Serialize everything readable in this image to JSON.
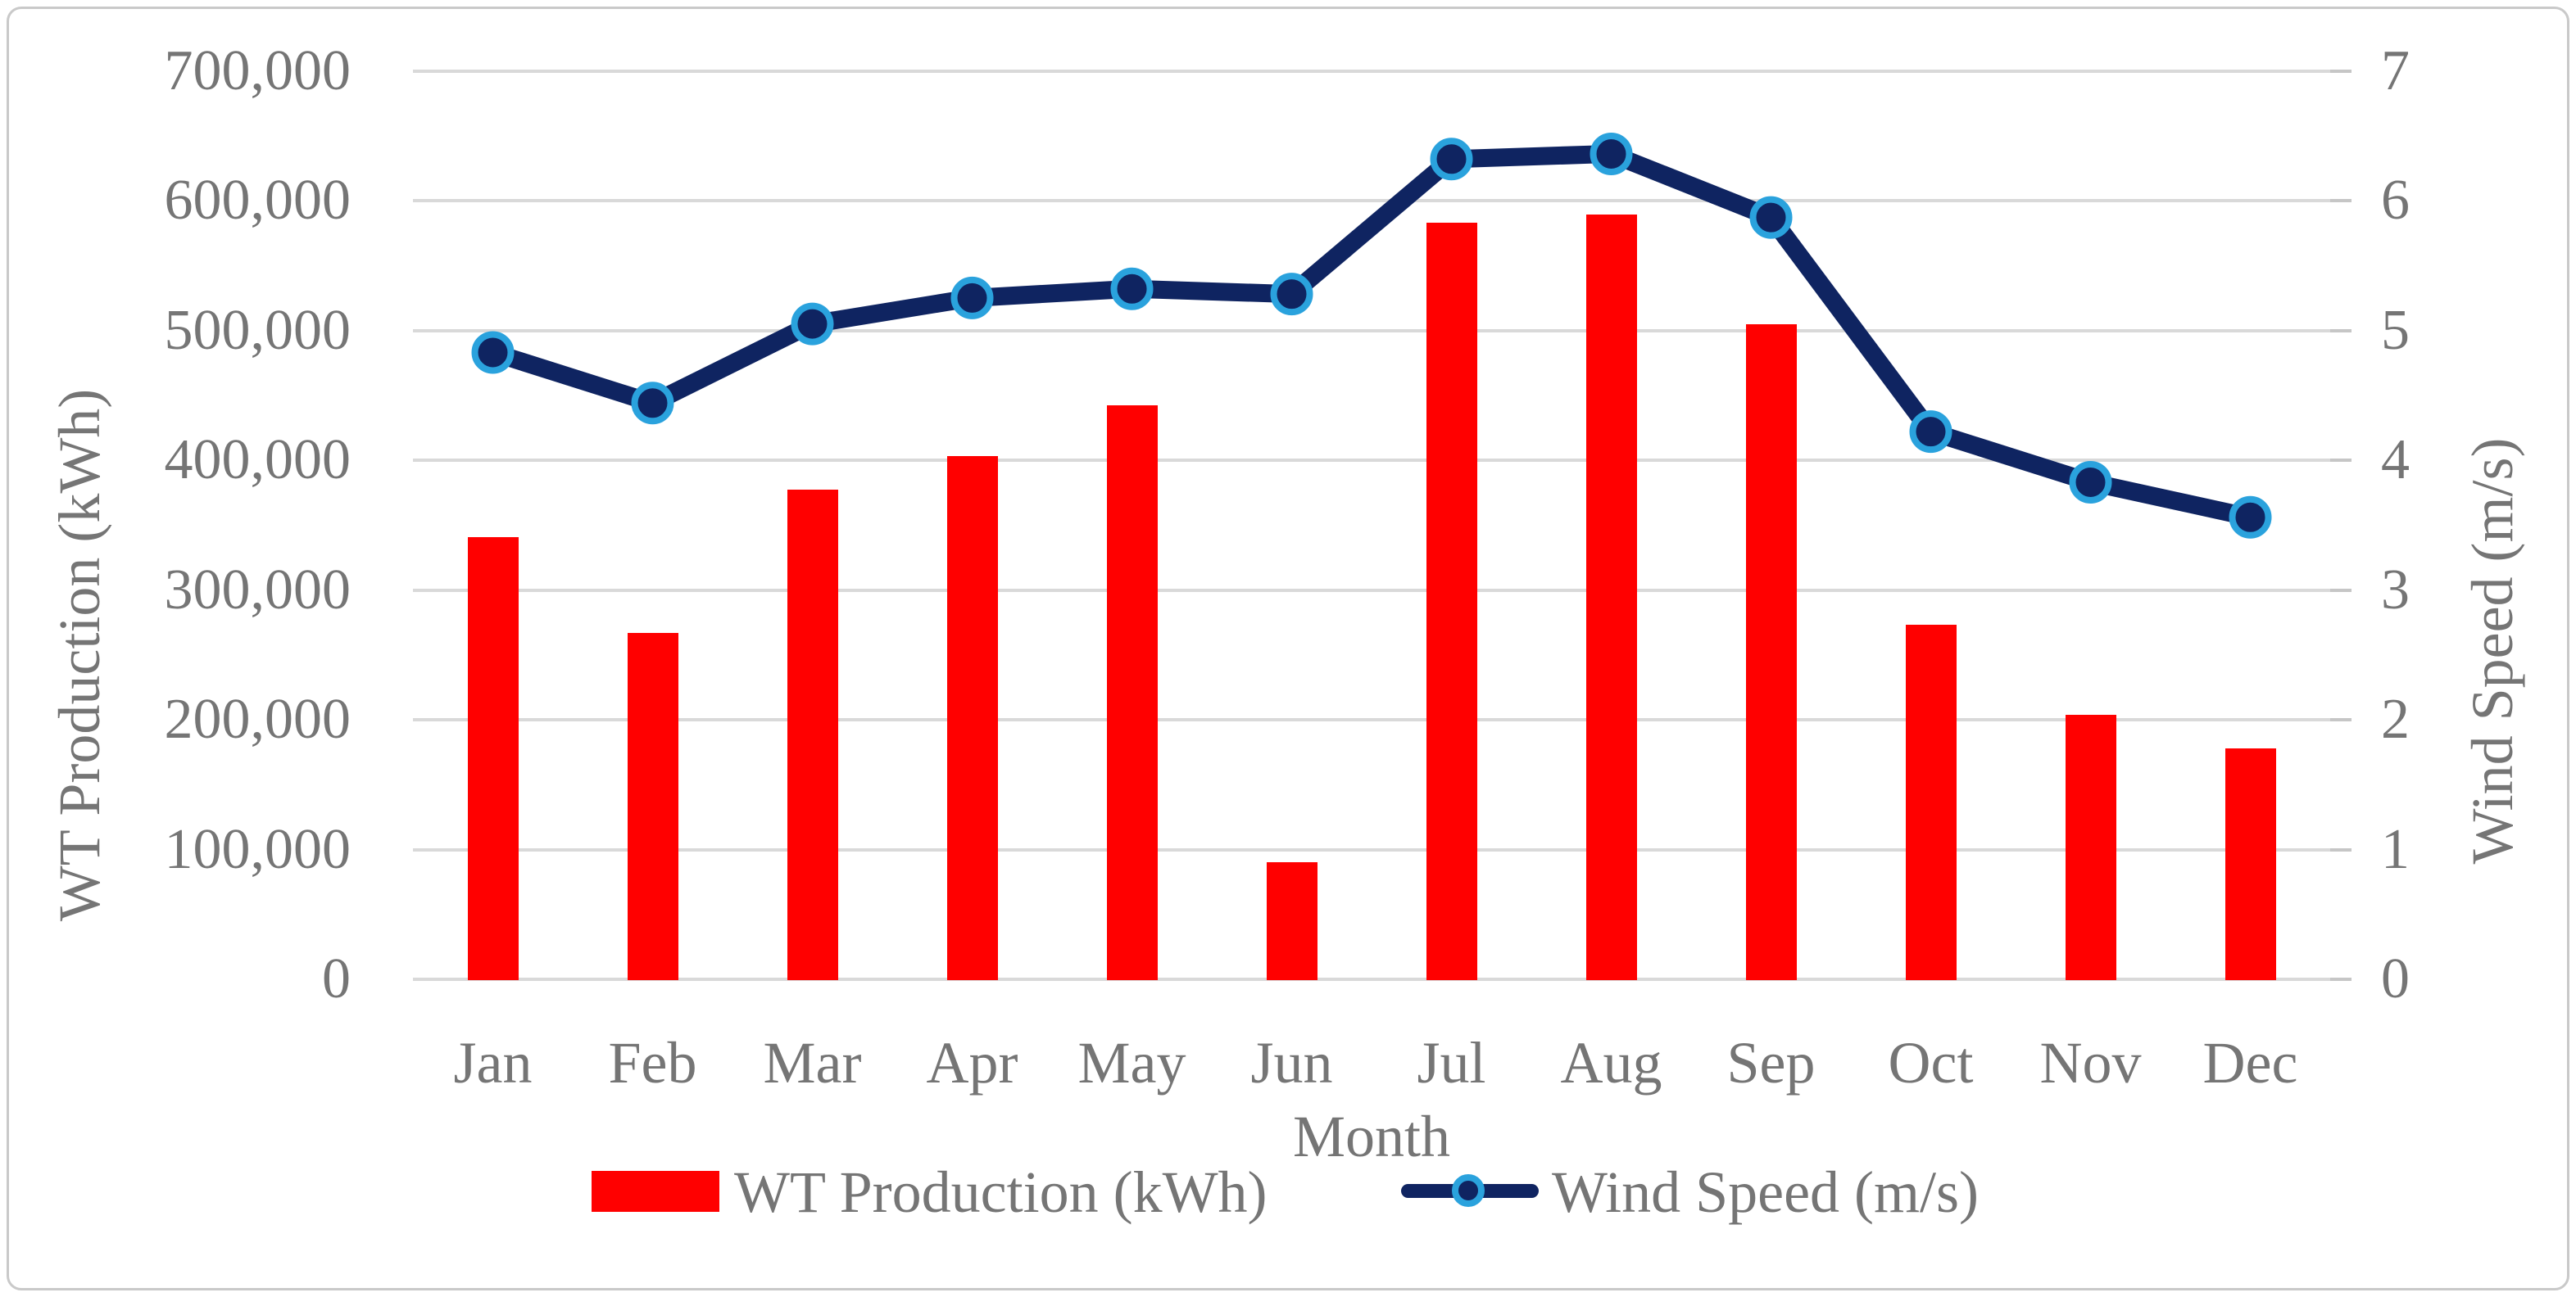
{
  "chart_data": {
    "type": "combo",
    "subtype": "bar+line, dual axis",
    "categories": [
      "Jan",
      "Feb",
      "Mar",
      "Apr",
      "May",
      "Jun",
      "Jul",
      "Aug",
      "Sep",
      "Oct",
      "Nov",
      "Dec"
    ],
    "series": [
      {
        "name": "WT Production (kWh)",
        "type": "bar",
        "axis": "left",
        "color": "#ff0000",
        "values": [
          341000,
          267000,
          377000,
          403000,
          442000,
          90000,
          583000,
          589000,
          505000,
          273000,
          204000,
          178000
        ]
      },
      {
        "name": "Wind Speed (m/s)",
        "type": "line",
        "axis": "right",
        "color": "#0f2461",
        "marker": {
          "fill": "#0f2461",
          "ring": "#2aa2dd"
        },
        "values": [
          4.83,
          4.44,
          5.05,
          5.25,
          5.32,
          5.28,
          6.32,
          6.36,
          5.87,
          4.22,
          3.83,
          3.56
        ]
      }
    ],
    "x_axis": {
      "title": "Month"
    },
    "left_axis": {
      "title": "WT Production (kWh)",
      "min": 0,
      "max": 700000,
      "step": 100000,
      "tick_labels": [
        "0",
        "100,000",
        "200,000",
        "300,000",
        "400,000",
        "500,000",
        "600,000",
        "700,000"
      ]
    },
    "right_axis": {
      "title": "Wind Speed (m/s)",
      "min": 0,
      "max": 7,
      "step": 1,
      "tick_labels": [
        "0",
        "1",
        "2",
        "3",
        "4",
        "5",
        "6",
        "7"
      ]
    },
    "grid": true,
    "legend_position": "bottom",
    "legend": [
      "WT Production (kWh)",
      "Wind Speed (m/s)"
    ]
  },
  "colors": {
    "bar": "#ff0000",
    "line": "#0f2461",
    "marker_ring": "#2aa2dd",
    "gridline": "#d9d9d9",
    "tick_dash": "#c6c6c6",
    "text": "#757575",
    "border": "#c9c9c9",
    "background": "#ffffff"
  }
}
